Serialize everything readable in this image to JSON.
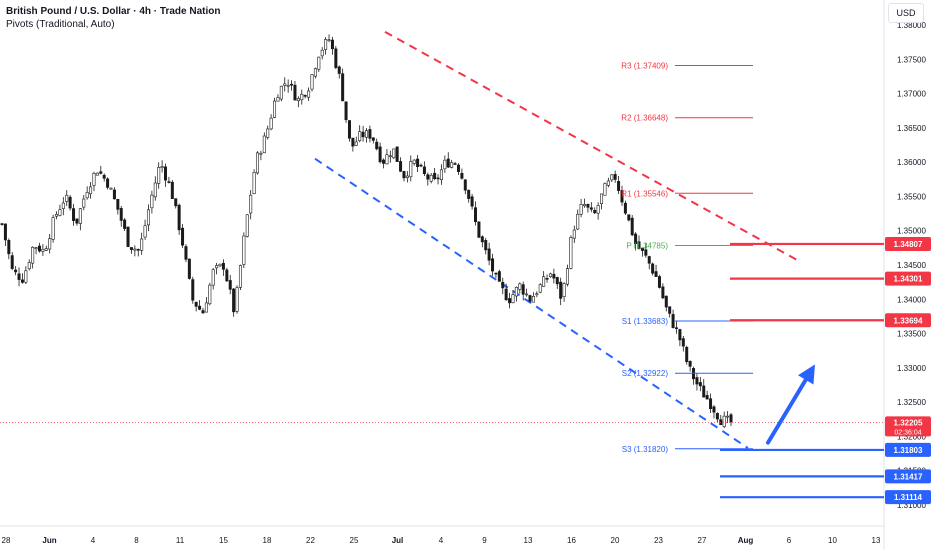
{
  "header": {
    "title": "British Pound / U.S. Dollar · 4h · Trade Nation",
    "indicator": "Pivots (Traditional, Auto)",
    "currency": "USD"
  },
  "colors": {
    "up": "#26a69a",
    "down": "#ef5350",
    "candle": "#1a1a1a",
    "resistance": "#f23645",
    "support": "#2962ff",
    "pivot": "#4caf50",
    "arrow": "#2962ff"
  },
  "chart_data": {
    "type": "candlestick",
    "timeframe": "4h",
    "ylim": [
      1.3095,
      1.381
    ],
    "y_ticks": [
      "1.38000",
      "1.37500",
      "1.37000",
      "1.36500",
      "1.36000",
      "1.35500",
      "1.35000",
      "1.34500",
      "1.34000",
      "1.33500",
      "1.33000",
      "1.32500",
      "1.32000",
      "1.31500",
      "1.31000"
    ],
    "x_ticks": [
      {
        "label": "28",
        "bold": false
      },
      {
        "label": "Jun",
        "bold": true
      },
      {
        "label": "4",
        "bold": false
      },
      {
        "label": "8",
        "bold": false
      },
      {
        "label": "11",
        "bold": false
      },
      {
        "label": "15",
        "bold": false
      },
      {
        "label": "18",
        "bold": false
      },
      {
        "label": "22",
        "bold": false
      },
      {
        "label": "25",
        "bold": false
      },
      {
        "label": "Jul",
        "bold": true
      },
      {
        "label": "4",
        "bold": false
      },
      {
        "label": "9",
        "bold": false
      },
      {
        "label": "13",
        "bold": false
      },
      {
        "label": "16",
        "bold": false
      },
      {
        "label": "20",
        "bold": false
      },
      {
        "label": "23",
        "bold": false
      },
      {
        "label": "27",
        "bold": false
      },
      {
        "label": "Aug",
        "bold": true
      },
      {
        "label": "6",
        "bold": false
      },
      {
        "label": "10",
        "bold": false
      },
      {
        "label": "13",
        "bold": false
      }
    ],
    "price_path": [
      1.351,
      1.344,
      1.343,
      1.348,
      1.347,
      1.352,
      1.355,
      1.351,
      1.356,
      1.359,
      1.357,
      1.353,
      1.348,
      1.347,
      1.354,
      1.36,
      1.356,
      1.349,
      1.34,
      1.338,
      1.344,
      1.345,
      1.338,
      1.35,
      1.36,
      1.364,
      1.37,
      1.372,
      1.369,
      1.371,
      1.376,
      1.378,
      1.372,
      1.362,
      1.364,
      1.364,
      1.36,
      1.362,
      1.358,
      1.36,
      1.358,
      1.357,
      1.36,
      1.36,
      1.356,
      1.35,
      1.346,
      1.342,
      1.34,
      1.342,
      1.34,
      1.342,
      1.344,
      1.34,
      1.35,
      1.354,
      1.352,
      1.356,
      1.358,
      1.353,
      1.348,
      1.346,
      1.343,
      1.338,
      1.335,
      1.33,
      1.327,
      1.325,
      1.3225,
      1.32205
    ],
    "last_price": "1.32205",
    "countdown": "02:36:04",
    "pivots": [
      {
        "label": "R3 (1.37409)",
        "value": 1.37409,
        "kind": "resistance"
      },
      {
        "label": "R2 (1.36648)",
        "value": 1.36648,
        "kind": "resistance"
      },
      {
        "label": "R1 (1.35546)",
        "value": 1.35546,
        "kind": "resistance"
      },
      {
        "label": "P (1.34785)",
        "value": 1.34785,
        "kind": "pivot"
      },
      {
        "label": "S1 (1.33683)",
        "value": 1.33683,
        "kind": "support"
      },
      {
        "label": "S2 (1.32922)",
        "value": 1.32922,
        "kind": "support"
      },
      {
        "label": "S3 (1.31820)",
        "value": 1.3182,
        "kind": "support"
      }
    ],
    "levels": [
      {
        "label": "1.34807",
        "value": 1.34807,
        "kind": "resistance"
      },
      {
        "label": "1.34301",
        "value": 1.34301,
        "kind": "resistance"
      },
      {
        "label": "1.33694",
        "value": 1.33694,
        "kind": "resistance"
      },
      {
        "label": "1.31803",
        "value": 1.31803,
        "kind": "support"
      },
      {
        "label": "1.31417",
        "value": 1.31417,
        "kind": "support"
      },
      {
        "label": "1.31114",
        "value": 1.31114,
        "kind": "support"
      }
    ],
    "channel": {
      "upper": {
        "from": 1.379,
        "to": 1.3455,
        "kind": "resistance"
      },
      "lower": {
        "from": 1.3605,
        "to": 1.3183,
        "kind": "support"
      }
    },
    "projection_arrow": {
      "from": 1.3191,
      "to": 1.3305,
      "direction": "up"
    }
  }
}
